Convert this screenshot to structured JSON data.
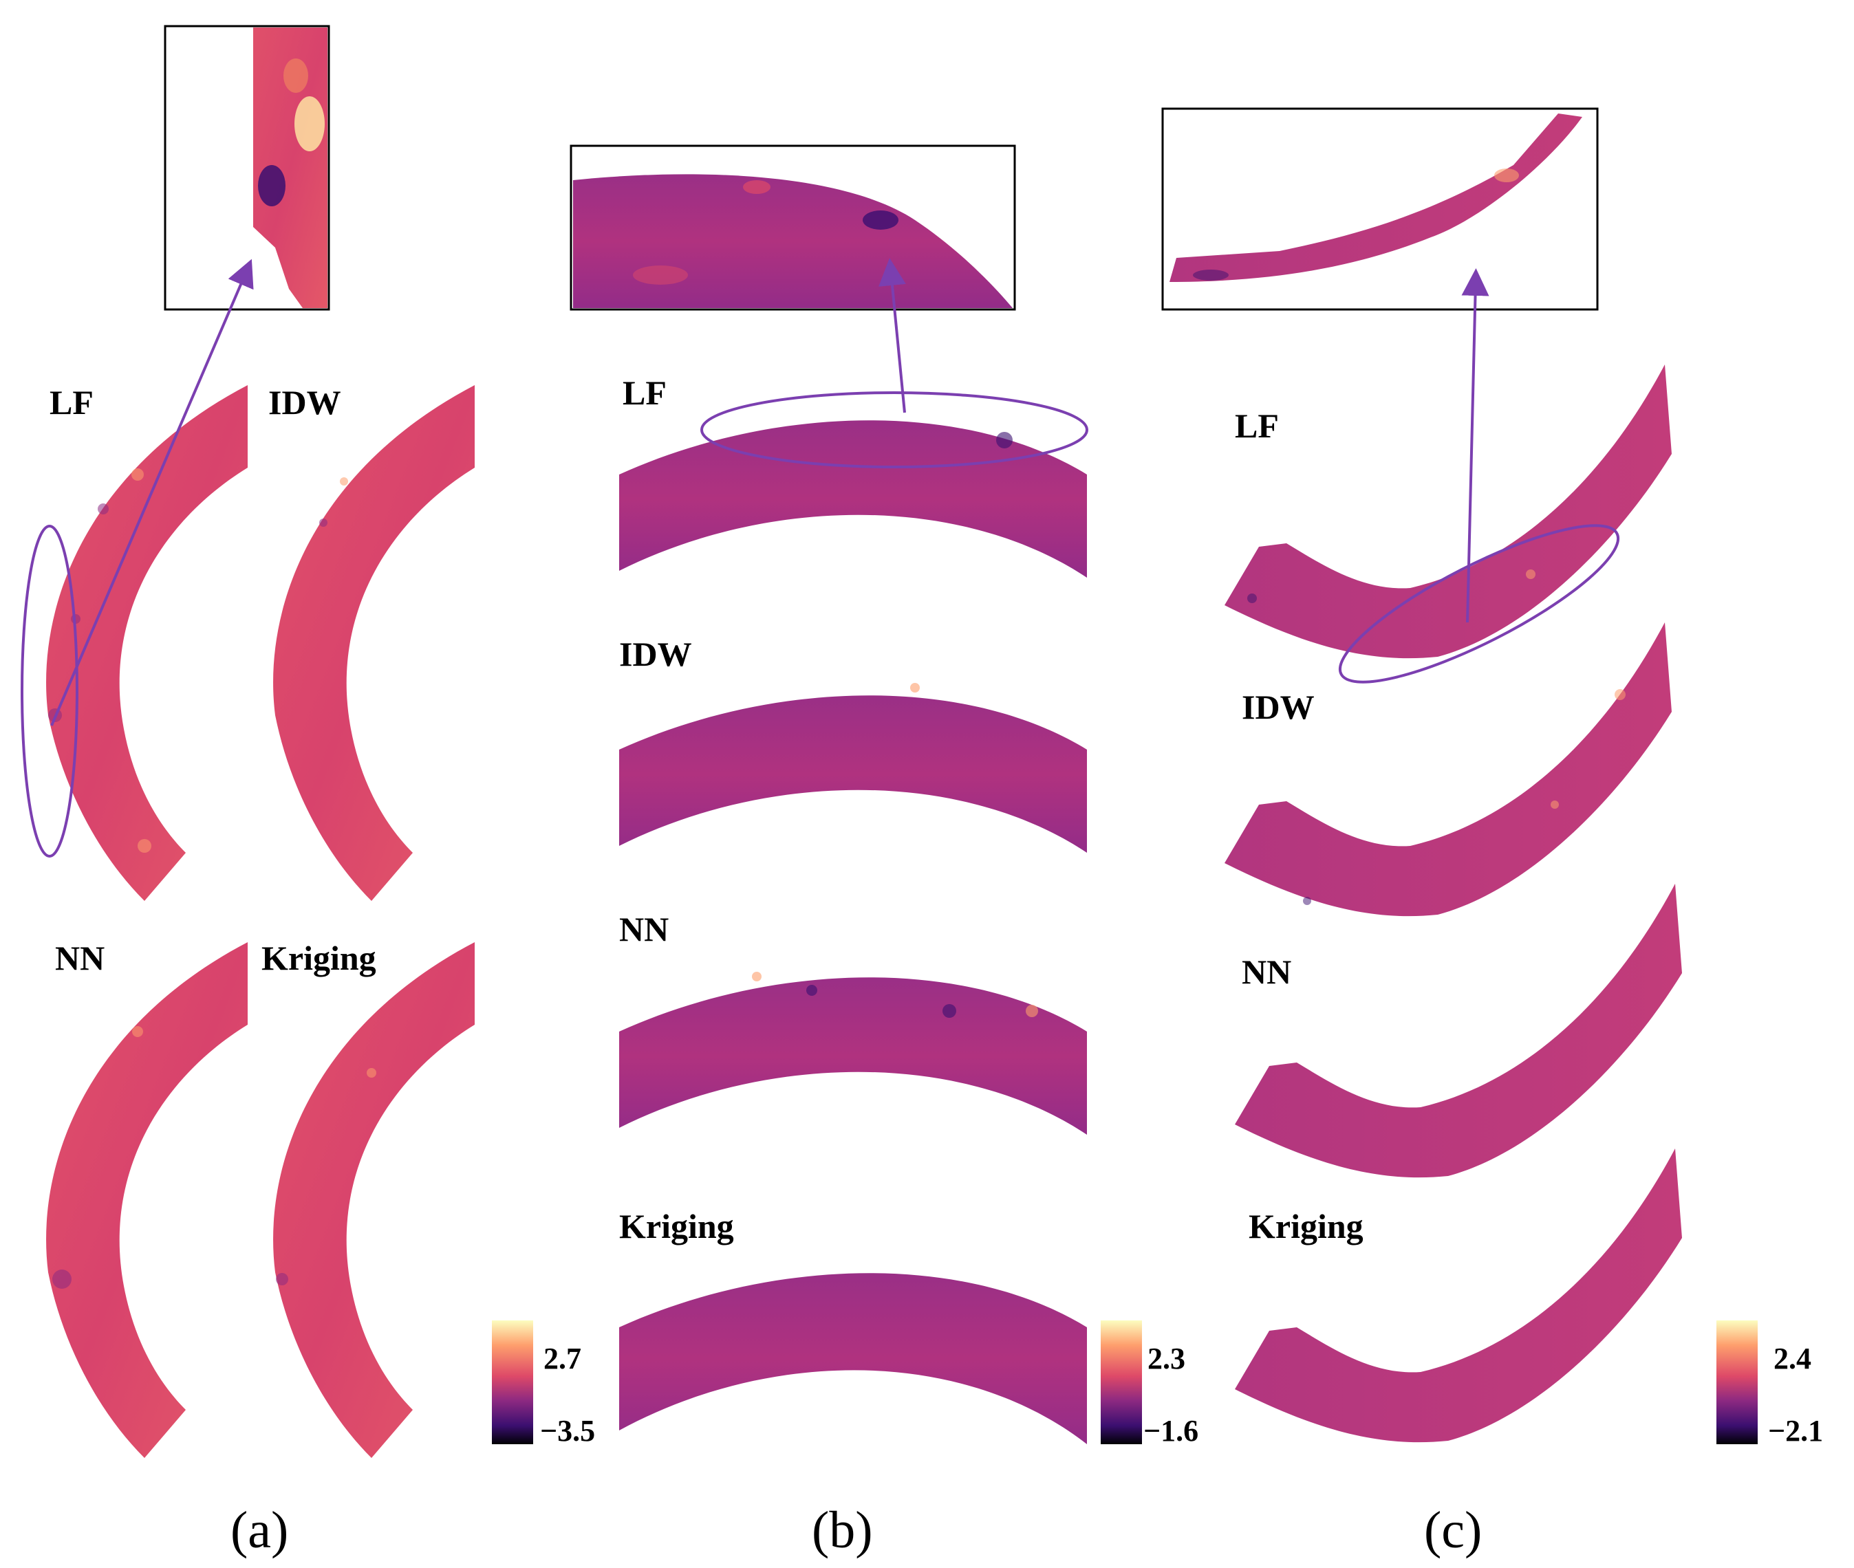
{
  "panels": [
    {
      "id": "a",
      "panel_label": "(a)",
      "methods": [
        "LF",
        "IDW",
        "NN",
        "Kriging"
      ],
      "colorbar": {
        "max_label": "2.7",
        "min_label": "−3.5",
        "max": 2.7,
        "min": -3.5
      }
    },
    {
      "id": "b",
      "panel_label": "(b)",
      "methods": [
        "LF",
        "IDW",
        "NN",
        "Kriging"
      ],
      "colorbar": {
        "max_label": "2.3",
        "min_label": "−1.6",
        "max": 2.3,
        "min": -1.6
      }
    },
    {
      "id": "c",
      "panel_label": "(c)",
      "methods": [
        "LF",
        "IDW",
        "NN",
        "Kriging"
      ],
      "colorbar": {
        "max_label": "2.4",
        "min_label": "−2.1",
        "max": 2.4,
        "min": -2.1
      }
    }
  ],
  "colors": {
    "field_base": "#d9406e",
    "field_dark": "#8a2f8c",
    "highlight": "#7b3fb0",
    "colormap": [
      "#fcfdbf",
      "#fe9f6d",
      "#de4968",
      "#8c2981",
      "#3b0f70",
      "#000004"
    ]
  }
}
